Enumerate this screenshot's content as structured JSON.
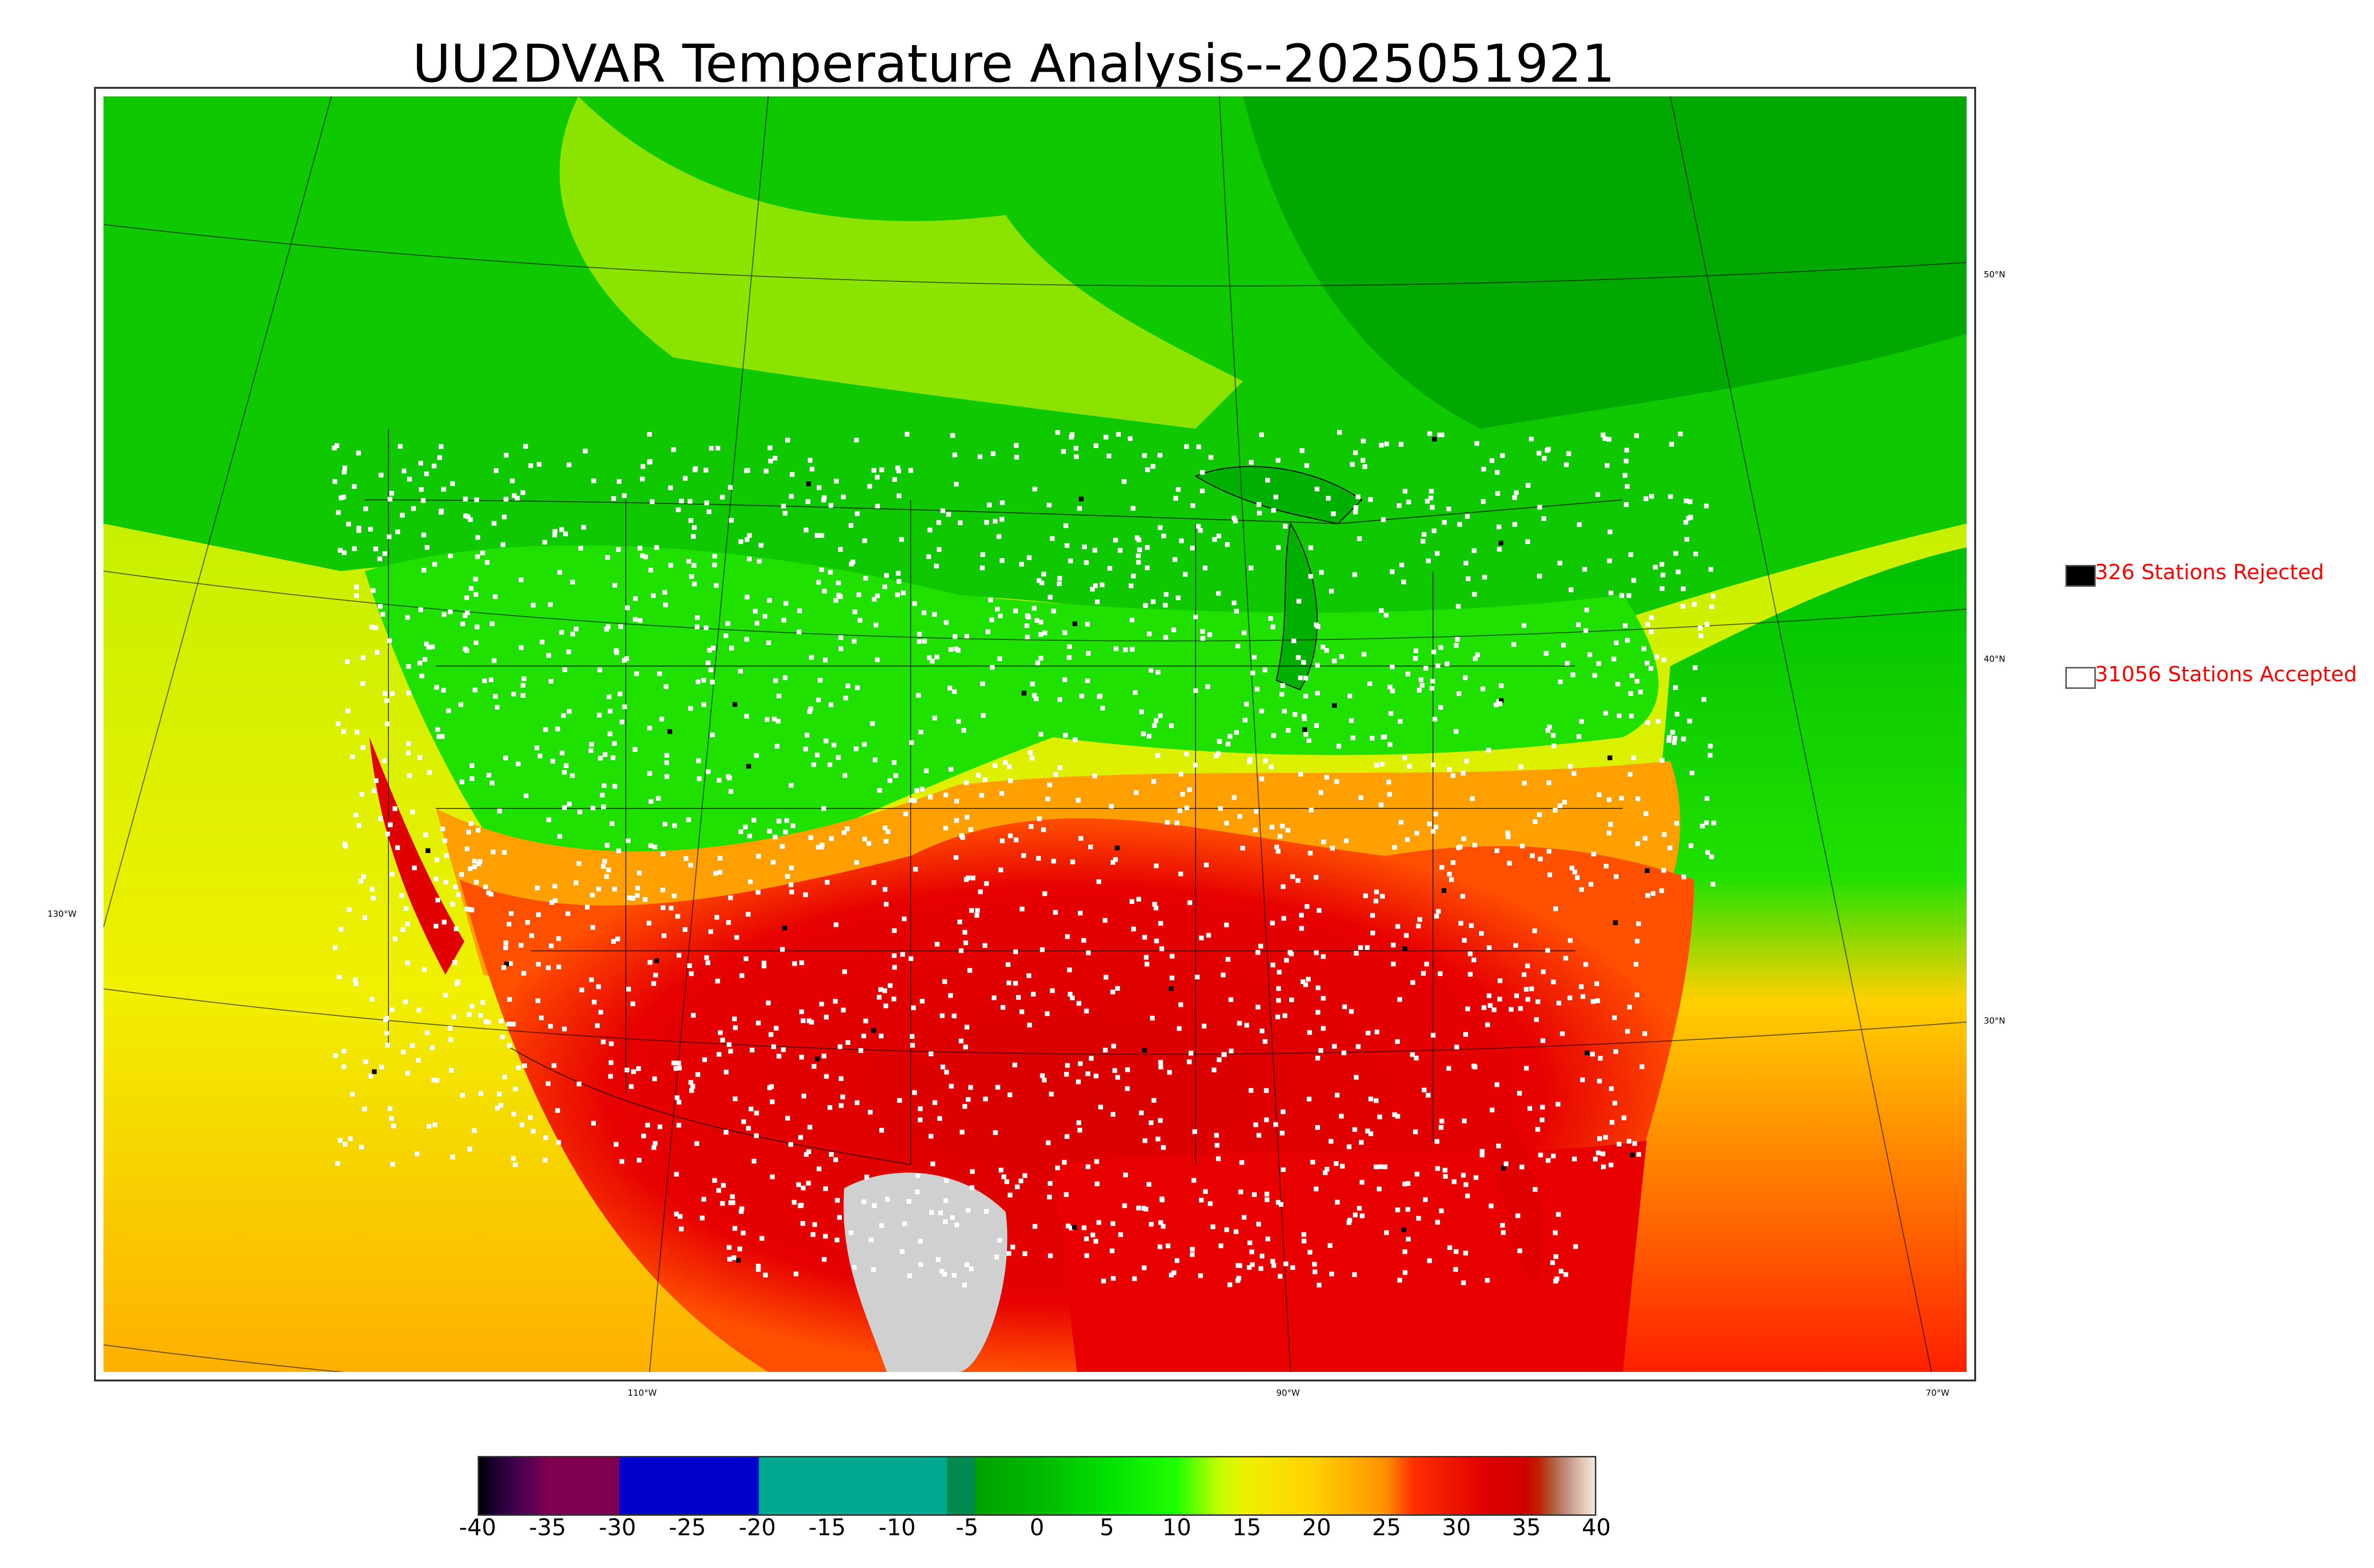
{
  "title": "UU2DVAR Temperature Analysis--2025051921",
  "legend": {
    "rejected": {
      "label": "326 Stations Rejected",
      "color": "#000000"
    },
    "accepted": {
      "label": "31056 Stations Accepted",
      "color": "#ffffff"
    }
  },
  "lat_labels": [
    "50°N",
    "40°N",
    "30°N"
  ],
  "lon_labels": [
    "130°W",
    "110°W",
    "90°W",
    "70°W"
  ],
  "colorbar": {
    "ticks": [
      "-40",
      "-35",
      "-30",
      "-25",
      "-20",
      "-15",
      "-10",
      "-5",
      "0",
      "5",
      "10",
      "15",
      "20",
      "25",
      "30",
      "35",
      "40"
    ],
    "range": [
      -40,
      40
    ],
    "stops": [
      {
        "value": -40,
        "color": "#000000"
      },
      {
        "value": -39,
        "color": "#1a0030"
      },
      {
        "value": -37,
        "color": "#4a0050"
      },
      {
        "value": -35,
        "color": "#800050"
      },
      {
        "value": -30,
        "color": "#800050"
      },
      {
        "value": -29.9,
        "color": "#0000cc"
      },
      {
        "value": -20,
        "color": "#0000cc"
      },
      {
        "value": -19.9,
        "color": "#00a890"
      },
      {
        "value": -6.5,
        "color": "#00a890"
      },
      {
        "value": -6.4,
        "color": "#008a50"
      },
      {
        "value": -4.5,
        "color": "#008a50"
      },
      {
        "value": -4.4,
        "color": "#00a000"
      },
      {
        "value": 0,
        "color": "#00b800"
      },
      {
        "value": 5,
        "color": "#00e000"
      },
      {
        "value": 10,
        "color": "#20ff00"
      },
      {
        "value": 13,
        "color": "#c0ff00"
      },
      {
        "value": 15,
        "color": "#f0f000"
      },
      {
        "value": 20,
        "color": "#ffd000"
      },
      {
        "value": 25,
        "color": "#ff9000"
      },
      {
        "value": 27,
        "color": "#ff3000"
      },
      {
        "value": 32,
        "color": "#e00000"
      },
      {
        "value": 35,
        "color": "#d00000"
      },
      {
        "value": 36,
        "color": "#c02000"
      },
      {
        "value": 37,
        "color": "#b06040"
      },
      {
        "value": 38,
        "color": "#c09080"
      },
      {
        "value": 39,
        "color": "#e0c0b0"
      },
      {
        "value": 40,
        "color": "#f0e8e0"
      }
    ]
  },
  "colors": {
    "ocean_west": "#e8f000",
    "canada": "#10c800",
    "hot": "#e00000",
    "warm": "#ff9000",
    "mild": "#f0f000",
    "cool": "#30e000",
    "snow": "#d0d0d0"
  }
}
